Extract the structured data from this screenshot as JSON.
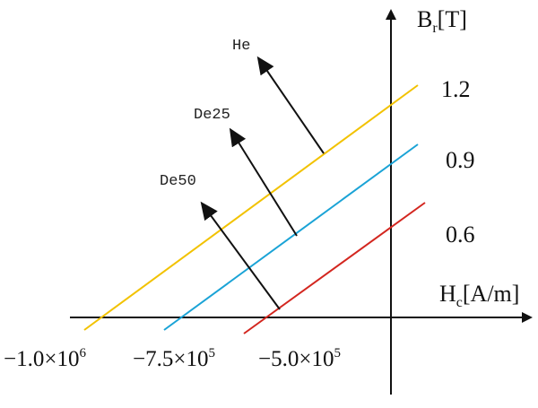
{
  "diagram": {
    "axes": {
      "y_label_main": "B",
      "y_label_sub": "r",
      "y_label_unit": "[T]",
      "x_label_main": "H",
      "x_label_sub": "c",
      "x_label_unit": "[A/m]"
    },
    "lines": [
      {
        "name": "He",
        "br_label": "1.2",
        "hc_base": "−1.0×10",
        "hc_exp": "6",
        "color": "#f2c200"
      },
      {
        "name": "De25",
        "br_label": "0.9",
        "hc_base": "−7.5×10",
        "hc_exp": "5",
        "color": "#1aa3d6"
      },
      {
        "name": "De50",
        "br_label": "0.6",
        "hc_base": "−5.0×10",
        "hc_exp": "5",
        "color": "#d3261f"
      }
    ],
    "colors": {
      "axis": "#111111",
      "arrow": "#111111"
    }
  }
}
